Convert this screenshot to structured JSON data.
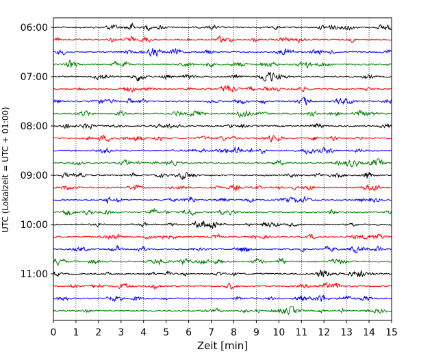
{
  "chart_data": {
    "type": "line",
    "title": "",
    "xlabel": "Zeit  [min]",
    "ylabel": "UTC (Lokalzeit = UTC + 01:00)",
    "xlim": [
      0,
      15
    ],
    "x_ticks": [
      "0",
      "1",
      "2",
      "3",
      "4",
      "5",
      "6",
      "7",
      "8",
      "9",
      "10",
      "11",
      "12",
      "13",
      "14",
      "15"
    ],
    "y_tick_labels": [
      "06:00",
      "07:00",
      "08:00",
      "09:00",
      "10:00",
      "11:00"
    ],
    "trace_interval_min": 15,
    "grid": "vertical dotted at each minute",
    "colors": [
      "#000000",
      "#ff0000",
      "#0000ff",
      "#008000"
    ],
    "traces": [
      {
        "start": "06:00",
        "color": "#000000"
      },
      {
        "start": "06:15",
        "color": "#ff0000"
      },
      {
        "start": "06:30",
        "color": "#0000ff"
      },
      {
        "start": "06:45",
        "color": "#008000"
      },
      {
        "start": "07:00",
        "color": "#000000"
      },
      {
        "start": "07:15",
        "color": "#ff0000"
      },
      {
        "start": "07:30",
        "color": "#0000ff"
      },
      {
        "start": "07:45",
        "color": "#008000"
      },
      {
        "start": "08:00",
        "color": "#000000"
      },
      {
        "start": "08:15",
        "color": "#ff0000"
      },
      {
        "start": "08:30",
        "color": "#0000ff"
      },
      {
        "start": "08:45",
        "color": "#008000"
      },
      {
        "start": "09:00",
        "color": "#000000"
      },
      {
        "start": "09:15",
        "color": "#ff0000"
      },
      {
        "start": "09:30",
        "color": "#0000ff"
      },
      {
        "start": "09:45",
        "color": "#008000"
      },
      {
        "start": "10:00",
        "color": "#000000"
      },
      {
        "start": "10:15",
        "color": "#ff0000"
      },
      {
        "start": "10:30",
        "color": "#0000ff"
      },
      {
        "start": "10:45",
        "color": "#008000"
      },
      {
        "start": "11:00",
        "color": "#000000"
      },
      {
        "start": "11:15",
        "color": "#ff0000"
      },
      {
        "start": "11:30",
        "color": "#0000ff"
      },
      {
        "start": "11:45",
        "color": "#008000"
      }
    ]
  }
}
